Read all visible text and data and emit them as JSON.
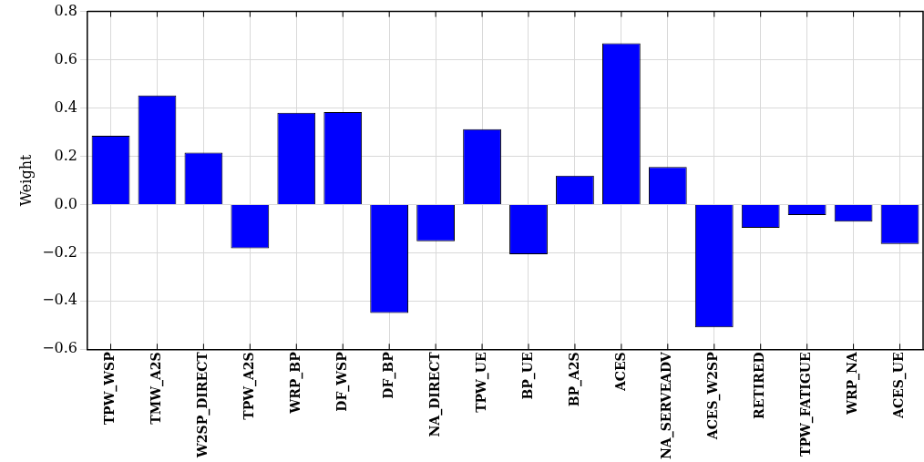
{
  "chart_data": {
    "type": "bar",
    "ylabel": "Weight",
    "categories": [
      "TPW_WSP",
      "TMW_A2S",
      "W2SP_DIRECT",
      "TPW_A2S",
      "WRP_BP",
      "DF_WSP",
      "DF_BP",
      "NA_DIRECT",
      "TPW_UE",
      "BP_UE",
      "BP_A2S",
      "ACES",
      "NA_SERVEADV",
      "ACES_W2SP",
      "RETIRED",
      "TPW_FATIGUE",
      "WRP_NA",
      "ACES_UE"
    ],
    "values": [
      0.285,
      0.452,
      0.215,
      -0.182,
      0.38,
      0.383,
      -0.45,
      -0.152,
      0.312,
      -0.206,
      0.12,
      0.668,
      0.155,
      -0.509,
      -0.097,
      -0.044,
      -0.071,
      -0.164
    ],
    "color": "#0000ff",
    "ylim": [
      -0.6,
      0.8
    ],
    "yticks": [
      {
        "value": -0.6,
        "label": "−0.6"
      },
      {
        "value": -0.4,
        "label": "−0.4"
      },
      {
        "value": -0.2,
        "label": "−0.2"
      },
      {
        "value": 0,
        "label": "0.0"
      },
      {
        "value": 0.2,
        "label": "0.2"
      },
      {
        "value": 0.4,
        "label": "0.4"
      },
      {
        "value": 0.6,
        "label": "0.6"
      },
      {
        "value": 0.8,
        "label": "0.8"
      }
    ],
    "grid": true,
    "legend": false
  }
}
